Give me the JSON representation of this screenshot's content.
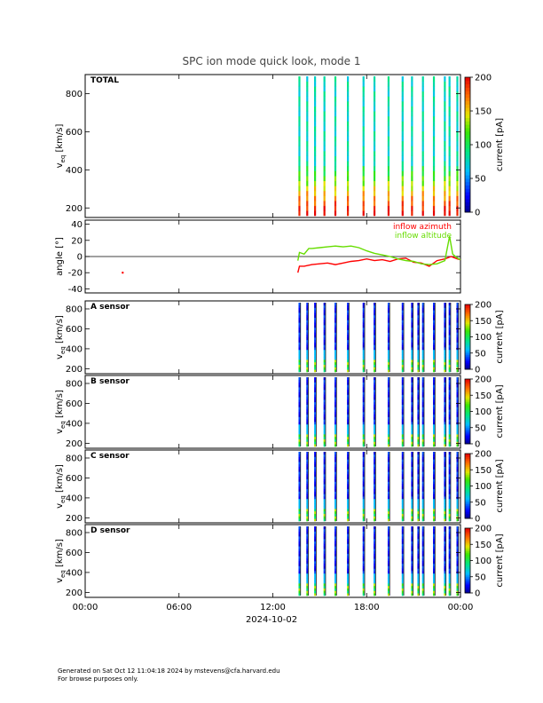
{
  "title": "SPC ion mode quick look, mode 1",
  "date_label": "2024-10-02",
  "footer": {
    "line1": "Generated on Sat Oct 12 11:04:18 2024 by mstevens@cfa.harvard.edu",
    "line2": "For browse purposes only."
  },
  "time_axis": {
    "range_hours": [
      0,
      24
    ],
    "ticks": [
      0,
      6,
      12,
      18,
      24
    ],
    "tick_labels": [
      "00:00",
      "06:00",
      "12:00",
      "18:00",
      "00:00"
    ]
  },
  "colorbar": {
    "label": "current [pA]",
    "range": [
      0,
      200
    ],
    "ticks_total": [
      0,
      50,
      100,
      150,
      200
    ],
    "ticks_sensor": [
      0,
      50,
      100,
      150,
      200
    ]
  },
  "chart_data": [
    {
      "type": "heatmap",
      "panel_label": "TOTAL",
      "ylabel": "v_eq [km/s]",
      "ylim": [
        150,
        900
      ],
      "yticks": [
        200,
        400,
        600,
        800
      ],
      "x_unit": "hours of 2024-10-02 UT",
      "data_columns_hours": [
        13.7,
        14.2,
        14.7,
        15.3,
        16.0,
        16.8,
        17.8,
        18.5,
        19.4,
        20.3,
        20.9,
        21.6,
        22.3,
        23.0,
        23.3,
        23.8
      ]
    },
    {
      "type": "line",
      "ylabel": "angle [°]",
      "ylim": [
        -45,
        45
      ],
      "yticks": [
        -40,
        -20,
        0,
        20,
        40
      ],
      "grid": "horizontal line at 0",
      "legend_position": "top-right",
      "series": [
        {
          "name": "inflow azimuth",
          "color": "#ff0000",
          "x": [
            2.4,
            13.6,
            13.7,
            14.0,
            14.5,
            15.0,
            15.5,
            16.0,
            16.5,
            17.0,
            17.5,
            18.0,
            18.5,
            19.0,
            19.5,
            20.0,
            20.5,
            21.0,
            21.5,
            22.0,
            22.5,
            23.0,
            23.4,
            23.8,
            24.0
          ],
          "y": [
            -20,
            -20,
            -12,
            -12,
            -10,
            -9,
            -8,
            -10,
            -8,
            -6,
            -5,
            -3,
            -5,
            -4,
            -6,
            -3,
            -2,
            -7,
            -8,
            -12,
            -5,
            -3,
            0,
            -3,
            -4
          ]
        },
        {
          "name": "inflow altitude",
          "color": "#66dd00",
          "x": [
            13.6,
            13.7,
            14.0,
            14.3,
            14.5,
            15.0,
            15.5,
            16.0,
            16.5,
            17.0,
            17.5,
            18.0,
            18.5,
            19.0,
            19.5,
            20.0,
            20.5,
            21.0,
            21.5,
            22.0,
            22.5,
            23.0,
            23.3,
            23.5,
            23.8,
            24.0
          ],
          "y": [
            -5,
            5,
            3,
            10,
            10,
            11,
            12,
            13,
            12,
            13,
            11,
            7,
            4,
            2,
            0,
            -3,
            -5,
            -6,
            -9,
            -10,
            -9,
            -5,
            25,
            3,
            -2,
            -4
          ]
        }
      ]
    },
    {
      "type": "heatmap",
      "panel_label": "A sensor",
      "ylabel": "v_eq [km/s]",
      "ylim": [
        150,
        880
      ],
      "yticks": [
        200,
        400,
        600,
        800
      ],
      "data_columns_hours": [
        13.7,
        14.2,
        14.7,
        15.3,
        16.0,
        16.8,
        17.8,
        18.5,
        19.4,
        20.3,
        20.9,
        21.3,
        21.6,
        22.3,
        23.0,
        23.3,
        23.8
      ]
    },
    {
      "type": "heatmap",
      "panel_label": "B sensor",
      "ylabel": "v_eq [km/s]",
      "ylim": [
        150,
        880
      ],
      "yticks": [
        200,
        400,
        600,
        800
      ],
      "data_columns_hours": [
        13.7,
        14.2,
        14.7,
        15.3,
        16.0,
        16.8,
        17.8,
        18.5,
        19.4,
        20.3,
        20.9,
        21.3,
        21.6,
        22.3,
        23.0,
        23.3,
        23.8
      ]
    },
    {
      "type": "heatmap",
      "panel_label": "C sensor",
      "ylabel": "v_eq [km/s]",
      "ylim": [
        150,
        880
      ],
      "yticks": [
        200,
        400,
        600,
        800
      ],
      "data_columns_hours": [
        13.7,
        14.2,
        14.7,
        15.3,
        16.0,
        16.8,
        17.8,
        18.5,
        19.4,
        20.3,
        20.9,
        21.3,
        21.6,
        22.3,
        23.0,
        23.3,
        23.8
      ]
    },
    {
      "type": "heatmap",
      "panel_label": "D sensor",
      "ylabel": "v_eq [km/s]",
      "ylim": [
        150,
        880
      ],
      "yticks": [
        200,
        400,
        600,
        800
      ],
      "data_columns_hours": [
        13.7,
        14.2,
        14.7,
        15.3,
        16.0,
        16.8,
        17.8,
        18.5,
        19.4,
        20.3,
        20.9,
        21.3,
        21.6,
        22.3,
        23.0,
        23.3,
        23.8
      ]
    }
  ]
}
